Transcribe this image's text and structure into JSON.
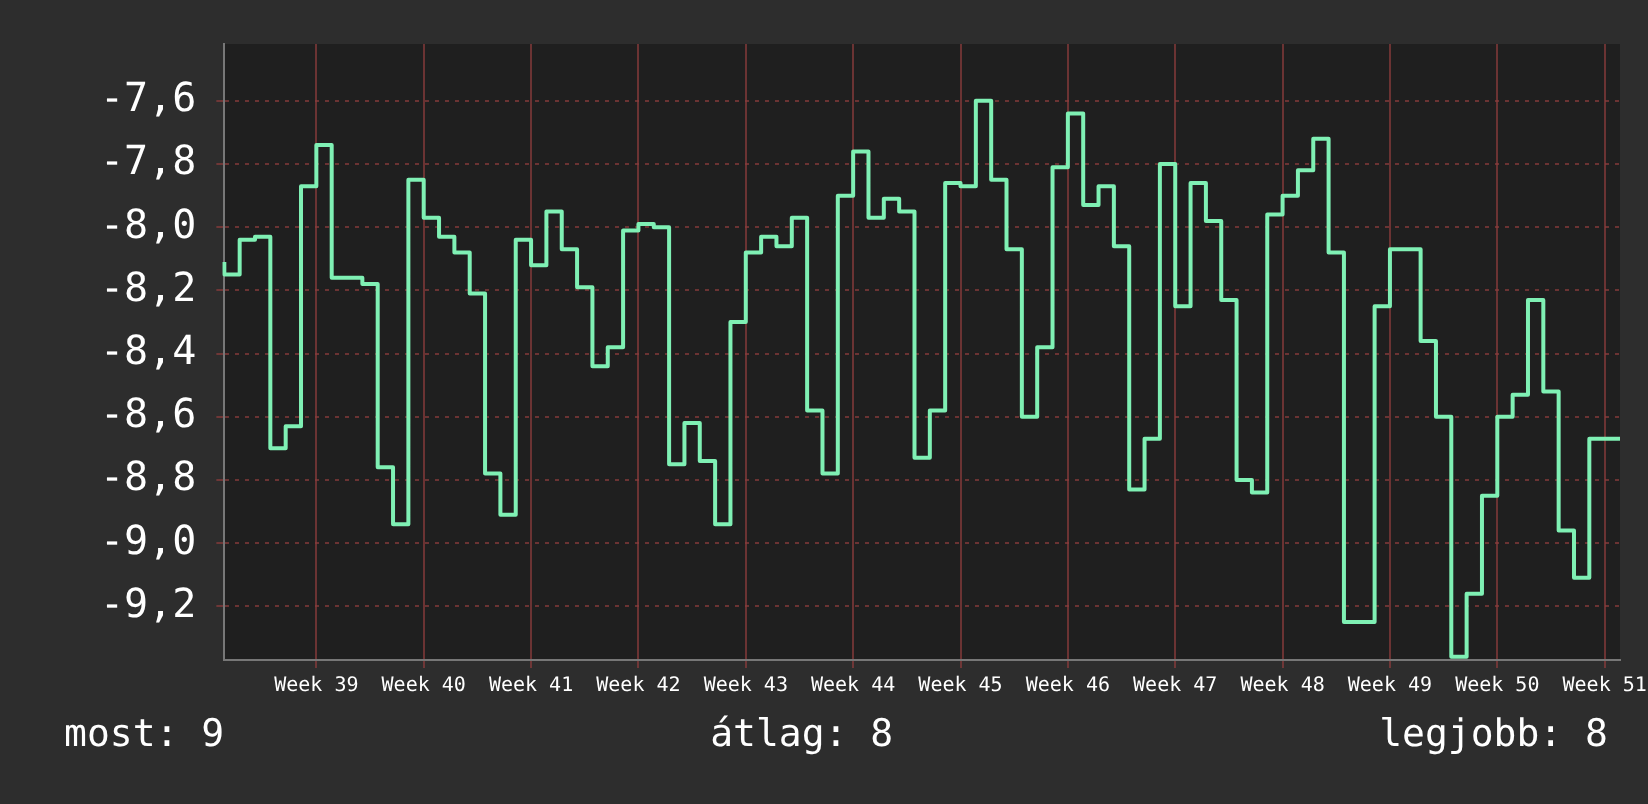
{
  "chart_data": {
    "type": "step",
    "color": "#7ff0b4",
    "categories": [
      null,
      null,
      null,
      null,
      null,
      null,
      "Week 39",
      null,
      null,
      null,
      null,
      null,
      null,
      "Week 40",
      null,
      null,
      null,
      null,
      null,
      null,
      "Week 41",
      null,
      null,
      null,
      null,
      null,
      null,
      "Week 42",
      null,
      null,
      null,
      null,
      null,
      null,
      "Week 43",
      null,
      null,
      null,
      null,
      null,
      null,
      "Week 44",
      null,
      null,
      null,
      null,
      null,
      null,
      "Week 45",
      null,
      null,
      null,
      null,
      null,
      null,
      "Week 46",
      null,
      null,
      null,
      null,
      null,
      null,
      "Week 47",
      null,
      null,
      null,
      null,
      null,
      null,
      "Week 48",
      null,
      null,
      null,
      null,
      null,
      null,
      "Week 49",
      null,
      null,
      null,
      null,
      null,
      null,
      "Week 50",
      null,
      null,
      null,
      null,
      null,
      null,
      "Week 51",
      null
    ],
    "values": [
      -8.11,
      -8.15,
      -8.04,
      -8.03,
      -8.7,
      -8.63,
      -7.87,
      -7.74,
      -8.16,
      -8.16,
      -8.18,
      -8.76,
      -8.94,
      -7.85,
      -7.97,
      -8.03,
      -8.08,
      -8.21,
      -8.78,
      -8.91,
      -8.04,
      -8.12,
      -7.95,
      -8.07,
      -8.19,
      -8.44,
      -8.38,
      -8.01,
      -7.99,
      -8.0,
      -8.75,
      -8.62,
      -8.74,
      -8.94,
      -8.3,
      -8.08,
      -8.03,
      -8.06,
      -7.97,
      -8.58,
      -8.78,
      -7.9,
      -7.76,
      -7.97,
      -7.91,
      -7.95,
      -8.73,
      -8.58,
      -7.86,
      -7.87,
      -7.6,
      -7.85,
      -8.07,
      -8.6,
      -8.38,
      -7.81,
      -7.64,
      -7.93,
      -7.87,
      -8.06,
      -8.83,
      -8.67,
      -7.8,
      -8.25,
      -7.86,
      -7.98,
      -8.23,
      -8.8,
      -8.84,
      -7.96,
      -7.9,
      -7.82,
      -7.72,
      -8.08,
      -9.25,
      -9.25,
      -8.25,
      -8.07,
      -8.07,
      -8.36,
      -8.6,
      -9.36,
      -9.16,
      -8.85,
      -8.6,
      -8.53,
      -8.23,
      -8.52,
      -8.96,
      -9.11,
      -8.67,
      -8.67
    ],
    "ylim": [
      -9.37,
      -7.42
    ],
    "yticks": [
      {
        "value": -7.6,
        "label": "-7,6"
      },
      {
        "value": -7.8,
        "label": "-7,8"
      },
      {
        "value": -8.0,
        "label": "-8,0"
      },
      {
        "value": -8.2,
        "label": "-8,2"
      },
      {
        "value": -8.4,
        "label": "-8,4"
      },
      {
        "value": -8.6,
        "label": "-8,6"
      },
      {
        "value": -8.8,
        "label": "-8,8"
      },
      {
        "value": -9.0,
        "label": "-9,0"
      },
      {
        "value": -9.2,
        "label": "-9,2"
      }
    ],
    "grid": true,
    "legend": false,
    "marker": "none",
    "line_style": "solid",
    "annotations": [
      "most: 9",
      "átlag: 8",
      "legjobb: 8"
    ]
  }
}
